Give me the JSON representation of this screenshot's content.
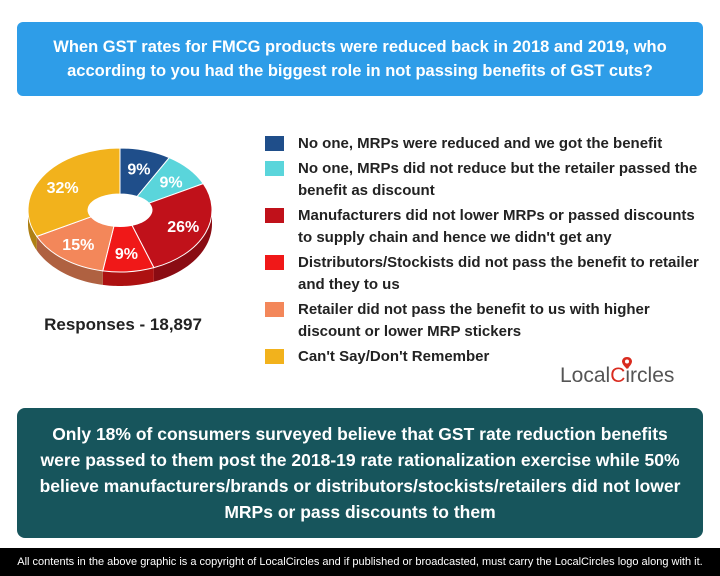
{
  "question": "When GST rates for FMCG products were reduced back in 2018 and 2019, who according to you had the biggest role in not passing benefits of GST cuts?",
  "chart_data": {
    "type": "pie",
    "donut": true,
    "series": [
      {
        "label": "No one, MRPs were reduced and we got the benefit",
        "value": 9,
        "color": "#1f4e8a",
        "display": "9%"
      },
      {
        "label": "No one, MRPs did not reduce but the retailer passed the benefit as discount",
        "value": 9,
        "color": "#5ad5db",
        "display": "9%"
      },
      {
        "label": "Manufacturers did not lower MRPs or passed discounts to supply chain and hence we didn't get any",
        "value": 26,
        "color": "#c0111a",
        "display": "26%"
      },
      {
        "label": "Distributors/Stockists did not pass the benefit to retailer and they to us",
        "value": 9,
        "color": "#f01818",
        "display": "9%"
      },
      {
        "label": "Retailer did not pass the benefit to us with higher discount or lower MRP stickers",
        "value": 15,
        "color": "#f3875a",
        "display": "15%"
      },
      {
        "label": "Can't Say/Don't Remember",
        "value": 32,
        "color": "#f2b21c",
        "display": "32%"
      }
    ]
  },
  "responses_label": "Responses - 18,897",
  "logo": {
    "text_left": "Local",
    "text_c": "C",
    "text_right": "ircles"
  },
  "summary": "Only 18% of consumers surveyed believe that GST rate reduction benefits were passed to them post the 2018-19 rate rationalization exercise while 50% believe manufacturers/brands or distributors/stockists/retailers did not lower MRPs or pass discounts to them",
  "footer": "All contents in the above graphic is a copyright of LocalCircles and if published or broadcasted, must carry the LocalCircles logo along with it."
}
